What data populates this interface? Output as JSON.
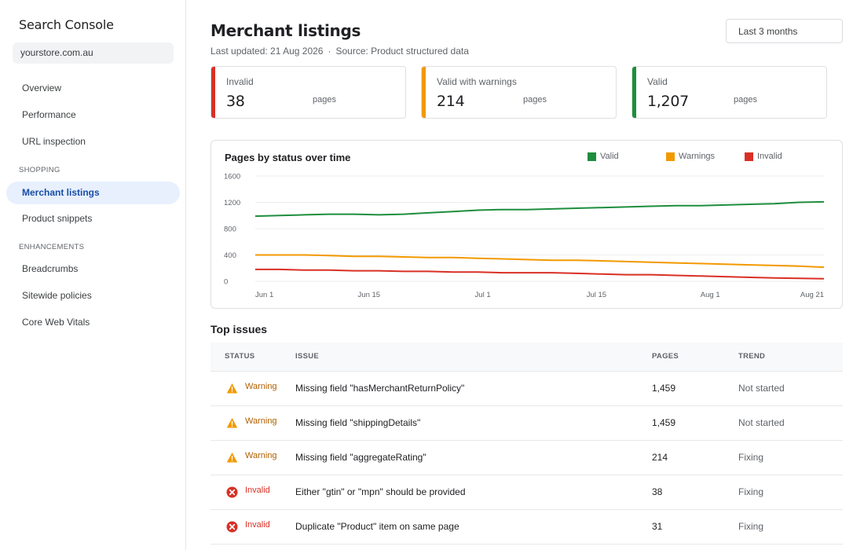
{
  "sidebar": {
    "app_title": "Search Console",
    "property": "yourstore.com.au",
    "items_top": [
      {
        "label": "Overview"
      },
      {
        "label": "Performance"
      },
      {
        "label": "URL inspection"
      }
    ],
    "section_shopping": "SHOPPING",
    "items_shopping": [
      {
        "label": "Merchant listings",
        "active": true
      },
      {
        "label": "Product snippets"
      }
    ],
    "section_enhancements": "ENHANCEMENTS",
    "items_enhancements": [
      {
        "label": "Breadcrumbs"
      },
      {
        "label": "Sitewide policies"
      },
      {
        "label": "Core Web Vitals"
      }
    ]
  },
  "header": {
    "title": "Merchant listings",
    "last_updated": "Last updated: 21 Aug 2026",
    "separator": "·",
    "source": "Source: Product structured data",
    "date_range": "Last 3 months"
  },
  "cards": [
    {
      "label": "Invalid",
      "value": "38",
      "unit": "pages",
      "color": "#d93025"
    },
    {
      "label": "Valid with warnings",
      "value": "214",
      "unit": "pages",
      "color": "#f29900"
    },
    {
      "label": "Valid",
      "value": "1,207",
      "unit": "pages",
      "color": "#1e8e3e"
    }
  ],
  "chart_data": {
    "type": "line",
    "title": "Pages by status over time",
    "x_ticks": [
      "Jun 1",
      "Jun 15",
      "Jul 1",
      "Jul 15",
      "Aug 1",
      "Aug 21"
    ],
    "y_ticks": [
      0,
      400,
      800,
      1200,
      1600
    ],
    "ylim": [
      0,
      1600
    ],
    "grid": true,
    "legend_position": "top-right",
    "series": [
      {
        "name": "Valid",
        "color": "#1e8e3e",
        "values": [
          990,
          1000,
          1010,
          1020,
          1020,
          1010,
          1020,
          1040,
          1060,
          1080,
          1090,
          1090,
          1100,
          1110,
          1120,
          1130,
          1140,
          1150,
          1150,
          1160,
          1170,
          1180,
          1200,
          1207
        ]
      },
      {
        "name": "Warnings",
        "color": "#f29900",
        "values": [
          400,
          400,
          400,
          390,
          380,
          380,
          370,
          360,
          360,
          350,
          340,
          330,
          320,
          320,
          310,
          300,
          290,
          280,
          270,
          260,
          250,
          240,
          230,
          214
        ]
      },
      {
        "name": "Invalid",
        "color": "#d93025",
        "values": [
          180,
          180,
          170,
          170,
          160,
          160,
          150,
          150,
          140,
          140,
          130,
          130,
          130,
          120,
          110,
          100,
          100,
          90,
          80,
          70,
          60,
          50,
          45,
          38
        ]
      }
    ]
  },
  "issues": {
    "title": "Top issues",
    "headers": {
      "status": "STATUS",
      "issue": "ISSUE",
      "pages": "PAGES",
      "trend": "TREND"
    },
    "rows": [
      {
        "status": "Warning",
        "type": "warning-icon",
        "issue": "Missing field \"hasMerchantReturnPolicy\"",
        "pages": "1,459",
        "trend": "Not started"
      },
      {
        "status": "Warning",
        "type": "warning-icon",
        "issue": "Missing field \"shippingDetails\"",
        "pages": "1,459",
        "trend": "Not started"
      },
      {
        "status": "Warning",
        "type": "warning-icon",
        "issue": "Missing field \"aggregateRating\"",
        "pages": "214",
        "trend": "Fixing"
      },
      {
        "status": "Invalid",
        "type": "error-icon",
        "issue": "Either \"gtin\" or \"mpn\" should be provided",
        "pages": "38",
        "trend": "Fixing"
      },
      {
        "status": "Invalid",
        "type": "error-icon",
        "issue": "Duplicate \"Product\" item on same page",
        "pages": "31",
        "trend": "Fixing"
      }
    ]
  },
  "colors": {
    "warning": "#f29900",
    "warning_text": "#b06000",
    "error": "#d93025",
    "valid": "#1e8e3e",
    "accent": "#1a73e8"
  }
}
